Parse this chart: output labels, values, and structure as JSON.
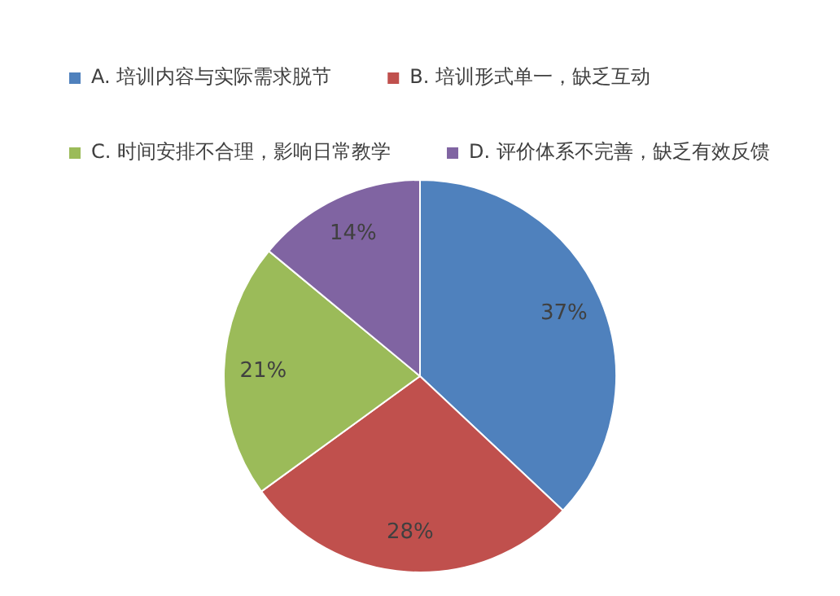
{
  "chart_data": {
    "type": "pie",
    "categories": [
      "A. 培训内容与实际需求脱节",
      "B. 培训形式单一，缺乏互动",
      "C. 时间安排不合理，影响日常教学",
      "D. 评价体系不完善，缺乏有效反馈"
    ],
    "values": [
      37,
      28,
      21,
      14
    ],
    "colors": [
      "#4f81bd",
      "#c0504d",
      "#9bbb59",
      "#8064a2"
    ],
    "value_labels": [
      "37%",
      "28%",
      "21%",
      "14%"
    ],
    "legend": "top"
  }
}
